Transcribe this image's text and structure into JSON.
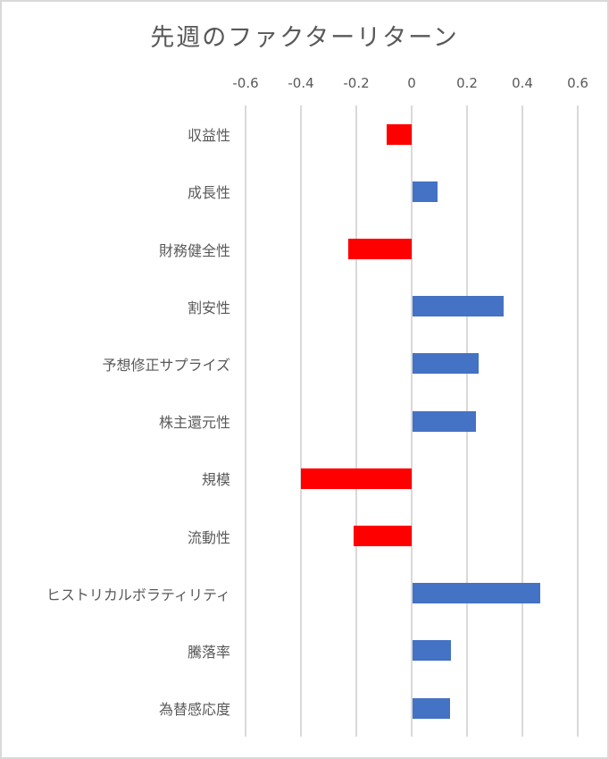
{
  "chart_data": {
    "type": "bar",
    "orientation": "horizontal",
    "title": "先週のファクターリターン",
    "xlabel": "",
    "ylabel": "",
    "xlim": [
      -0.6,
      0.6
    ],
    "x_ticks": [
      "-0.6",
      "-0.4",
      "-0.2",
      "0",
      "0.2",
      "0.4",
      "0.6"
    ],
    "x_tick_values": [
      -0.6,
      -0.4,
      -0.2,
      0,
      0.2,
      0.4,
      0.6
    ],
    "axis_position": "top",
    "grid": true,
    "legend": null,
    "categories": [
      "収益性",
      "成長性",
      "財務健全性",
      "割安性",
      "予想修正サプライズ",
      "株主還元性",
      "規模",
      "流動性",
      "ヒストリカルボラティリティ",
      "騰落率",
      "為替感応度"
    ],
    "values": [
      -0.09,
      0.09,
      -0.23,
      0.33,
      0.24,
      0.23,
      -0.4,
      -0.21,
      0.46,
      0.14,
      0.135
    ],
    "colors": {
      "positive": "#4472C4",
      "negative": "#FF0000"
    }
  },
  "colors": {
    "title": "#595959",
    "text": "#595959",
    "grid": "#d9d9d9",
    "border": "#d9d9d9",
    "positive": "#4472C4",
    "negative": "#FF0000"
  }
}
